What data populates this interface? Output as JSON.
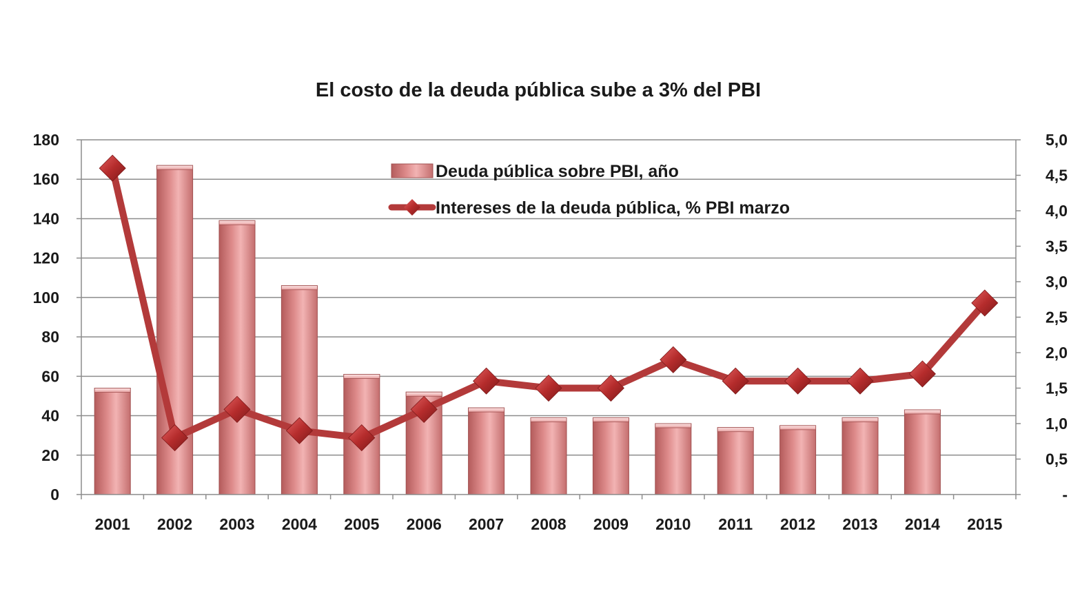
{
  "chart_data": {
    "type": "bar",
    "title": "El costo de la deuda pública sube a 3% del PBI",
    "categories": [
      "2001",
      "2002",
      "2003",
      "2004",
      "2005",
      "2006",
      "2007",
      "2008",
      "2009",
      "2010",
      "2011",
      "2012",
      "2013",
      "2014",
      "2015"
    ],
    "series": [
      {
        "name": "Deuda pública sobre PBI, año",
        "type": "bar",
        "axis": "left",
        "values": [
          54,
          167,
          139,
          106,
          61,
          52,
          44,
          39,
          39,
          36,
          34,
          35,
          39,
          43,
          null
        ]
      },
      {
        "name": "Intereses de la deuda pública, % PBI marzo",
        "type": "line",
        "axis": "right",
        "values": [
          4.6,
          0.8,
          1.2,
          0.9,
          0.8,
          1.2,
          1.6,
          1.5,
          1.5,
          1.9,
          1.6,
          1.6,
          1.6,
          1.7,
          2.7
        ]
      }
    ],
    "y_left": {
      "range": [
        0,
        180
      ],
      "ticks": [
        0,
        20,
        40,
        60,
        80,
        100,
        120,
        140,
        160,
        180
      ],
      "tick_labels": [
        "0",
        "20",
        "40",
        "60",
        "80",
        "100",
        "120",
        "140",
        "160",
        "180"
      ]
    },
    "y_right": {
      "range": [
        0,
        5
      ],
      "ticks": [
        0,
        0.5,
        1,
        1.5,
        2,
        2.5,
        3,
        3.5,
        4,
        4.5,
        5
      ],
      "tick_labels": [
        "-",
        "0,5",
        "1,0",
        "1,5",
        "2,0",
        "2,5",
        "3,0",
        "3,5",
        "4,0",
        "4,5",
        "5,0"
      ]
    },
    "grid": true,
    "legend_position": "top-center",
    "colors": {
      "bar_light": "#f2b3b3",
      "bar_mid": "#dd8a8a",
      "bar_dark": "#b45c5c",
      "bar_edge": "#a05050",
      "line": "#b33a3a",
      "marker": "#b52c2c",
      "marker_dark": "#7e1a1a",
      "grid": "#8c8c8c",
      "axis": "#8c8c8c",
      "text": "#1a1a1a"
    }
  }
}
